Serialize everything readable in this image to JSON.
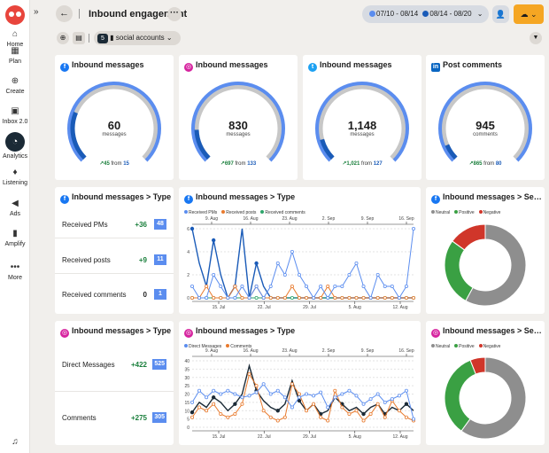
{
  "sidebar": {
    "items": [
      {
        "label": "Home",
        "icon": "home-icon",
        "glyph": "⌂"
      },
      {
        "label": "Plan",
        "icon": "calendar-icon",
        "glyph": "▦"
      },
      {
        "label": "Create",
        "icon": "plus-circle-icon",
        "glyph": "⊕"
      },
      {
        "label": "Inbox 2.0",
        "icon": "inbox-icon",
        "glyph": "▣"
      },
      {
        "label": "Analytics",
        "icon": "analytics-icon",
        "glyph": "◔"
      },
      {
        "label": "Listening",
        "icon": "lightbulb-icon",
        "glyph": "♦"
      },
      {
        "label": "Ads",
        "icon": "megaphone-icon",
        "glyph": "◀"
      },
      {
        "label": "Amplify",
        "icon": "bars-icon",
        "glyph": "▮"
      },
      {
        "label": "More",
        "icon": "ellipsis-icon",
        "glyph": "•••"
      }
    ],
    "active": "Analytics"
  },
  "header": {
    "title": "Inbound engagement",
    "date_range_current": "07/10 - 08/14",
    "date_range_compare": "08/14 - 08/20",
    "accounts_count": "5",
    "accounts_label": "social accounts"
  },
  "colors": {
    "accent_blue": "#5b8def",
    "dark": "#1b2a36",
    "orange": "#e87a2d",
    "green": "#2ea56b",
    "gauge_gray": "#c7c7c7",
    "export": "#f5a623"
  },
  "gauges": [
    {
      "network": "facebook",
      "title": "Inbound messages",
      "value": "60",
      "unit": "messages",
      "delta": "45",
      "from": "15",
      "fraction": 0.25
    },
    {
      "network": "instagram",
      "title": "Inbound messages",
      "value": "830",
      "unit": "messages",
      "delta": "697",
      "from": "133",
      "fraction": 0.16
    },
    {
      "network": "twitter",
      "title": "Inbound messages",
      "value": "1,148",
      "unit": "messages",
      "delta": "1,021",
      "from": "127",
      "fraction": 0.11
    },
    {
      "network": "linkedin",
      "title": "Post comments",
      "value": "945",
      "unit": "comments",
      "delta": "865",
      "from": "80",
      "fraction": 0.08
    }
  ],
  "fb_type": {
    "title": "Inbound messages > Type",
    "rows": [
      {
        "label": "Received PMs",
        "delta": "+36",
        "value": "48"
      },
      {
        "label": "Received posts",
        "delta": "+9",
        "value": "11"
      },
      {
        "label": "Received comments",
        "delta": "0",
        "value": "1"
      }
    ]
  },
  "ig_type": {
    "title": "Inbound messages > Type",
    "rows": [
      {
        "label": "Direct Messages",
        "delta": "+422",
        "value": "525"
      },
      {
        "label": "Comments",
        "delta": "+275",
        "value": "305"
      }
    ]
  },
  "chart_data": [
    {
      "type": "line",
      "title": "Inbound messages > Type",
      "network": "facebook",
      "top_axis": [
        "9. Aug",
        "16. Aug",
        "23. Aug",
        "2. Sep",
        "9. Sep",
        "16. Sep"
      ],
      "bottom_axis": [
        "15. Jul",
        "22. Jul",
        "29. Jul",
        "5. Aug",
        "12. Aug"
      ],
      "ylim": [
        0,
        6
      ],
      "yticks": [
        "0",
        "2",
        "4",
        "6"
      ],
      "series": [
        {
          "name": "Received PMs",
          "color": "#5b8def",
          "values": [
            1,
            0,
            0,
            2,
            1,
            0,
            0,
            1,
            0,
            1,
            0,
            1,
            3,
            2,
            4,
            2,
            1,
            0,
            1,
            0,
            1,
            1,
            2,
            3,
            1,
            0,
            2,
            1,
            1,
            0,
            1,
            6
          ]
        },
        {
          "name": "Received posts",
          "color": "#e87a2d",
          "values": [
            0,
            0,
            1,
            0,
            0,
            0,
            1,
            0,
            0,
            1,
            0,
            0,
            0,
            0,
            1,
            0,
            0,
            0,
            0,
            1,
            0,
            0,
            0,
            0,
            0,
            0,
            0,
            0,
            0,
            0,
            0,
            0
          ]
        },
        {
          "name": "Received comments",
          "color": "#2ea56b",
          "values": [
            0,
            0,
            0,
            0,
            0,
            0,
            0,
            0,
            0,
            0,
            0,
            0,
            0,
            0,
            0,
            0,
            0,
            0,
            0,
            0,
            0,
            0,
            0,
            0,
            0,
            0,
            0,
            0,
            0,
            0,
            0,
            0
          ]
        }
      ],
      "compare_series": {
        "color": "#1a5bb8",
        "values": [
          6,
          3,
          1,
          5,
          2,
          0,
          1,
          6,
          0,
          3,
          1,
          0,
          0,
          0,
          0,
          0,
          0,
          0,
          0,
          0,
          0,
          0,
          0,
          0,
          0,
          0,
          0,
          0,
          0,
          0,
          0,
          0
        ]
      }
    },
    {
      "type": "line",
      "title": "Inbound messages > Type",
      "network": "instagram",
      "top_axis": [
        "9. Aug",
        "16. Aug",
        "23. Aug",
        "2. Sep",
        "9. Sep",
        "16. Sep"
      ],
      "bottom_axis": [
        "15. Jul",
        "22. Jul",
        "29. Jul",
        "5. Aug",
        "12. Aug"
      ],
      "ylim": [
        0,
        40
      ],
      "yticks": [
        "0",
        "5",
        "10",
        "15",
        "20",
        "25",
        "30",
        "35",
        "40"
      ],
      "series": [
        {
          "name": "Direct Messages",
          "color": "#5b8def",
          "values": [
            15,
            22,
            18,
            22,
            20,
            22,
            20,
            18,
            19,
            21,
            26,
            20,
            22,
            18,
            12,
            18,
            20,
            19,
            21,
            12,
            18,
            20,
            22,
            19,
            14,
            17,
            20,
            15,
            17,
            19,
            22,
            5
          ]
        },
        {
          "name": "Comments",
          "color": "#e87a2d",
          "values": [
            6,
            12,
            10,
            14,
            8,
            6,
            8,
            14,
            32,
            25,
            10,
            6,
            4,
            6,
            26,
            20,
            10,
            14,
            6,
            4,
            22,
            12,
            8,
            10,
            4,
            8,
            14,
            6,
            16,
            10,
            6,
            4
          ]
        }
      ],
      "compare_series": {
        "color": "#1b2a36",
        "values": [
          9,
          15,
          12,
          18,
          15,
          10,
          14,
          20,
          37,
          22,
          16,
          12,
          10,
          14,
          28,
          16,
          10,
          14,
          8,
          10,
          18,
          14,
          10,
          12,
          8,
          12,
          14,
          8,
          12,
          10,
          14,
          10
        ]
      }
    },
    {
      "type": "pie",
      "title": "Inbound messages > Se…",
      "network": "facebook",
      "legend": [
        "Neutral",
        "Positive",
        "Negative"
      ],
      "categories": [
        "Neutral",
        "Positive",
        "Negative"
      ],
      "values": [
        58,
        27,
        15
      ],
      "colors": [
        "#8e8e8e",
        "#3aa043",
        "#d0362a"
      ]
    },
    {
      "type": "pie",
      "title": "Inbound messages > Se…",
      "network": "instagram",
      "legend": [
        "Neutral",
        "Positive",
        "Negative"
      ],
      "categories": [
        "Neutral",
        "Positive",
        "Negative"
      ],
      "values": [
        60,
        34,
        6
      ],
      "colors": [
        "#8e8e8e",
        "#3aa043",
        "#d0362a"
      ]
    }
  ]
}
